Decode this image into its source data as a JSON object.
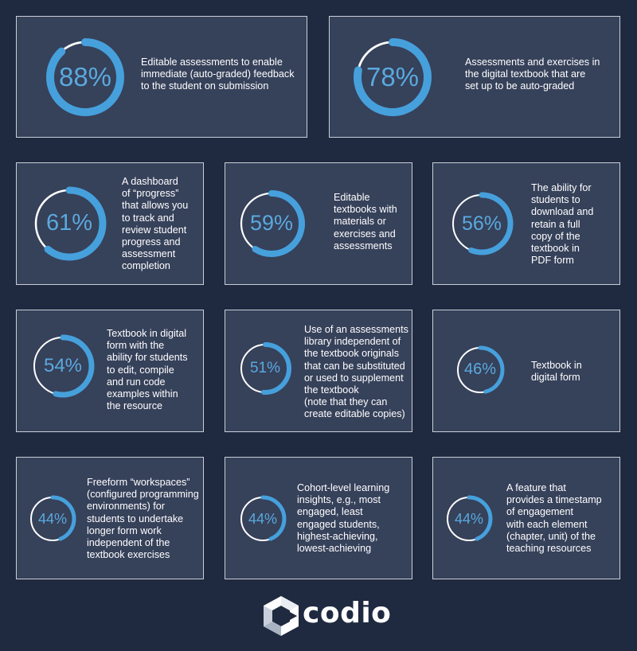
{
  "chart_data": {
    "type": "donut",
    "items": [
      {
        "value": 88,
        "label": "88%",
        "text": "Editable assessments to enable\nimmediate  (auto-graded) feedback\nto the student on submission"
      },
      {
        "value": 78,
        "label": "78%",
        "text": "Assessments and  exercises in\nthe digital textbook that are\nset up to be auto-graded"
      },
      {
        "value": 61,
        "label": "61%",
        "text": "A dashboard\nof “progress”\nthat allows you\nto  track and\nreview student\nprogress and\nassessment\ncompletion"
      },
      {
        "value": 59,
        "label": "59%",
        "text": "Editable\ntextbooks with\nmaterials or\nexercises and\nassessments"
      },
      {
        "value": 56,
        "label": "56%",
        "text": "The ability for\nstudents to\ndownload and\nretain  a full\ncopy of the\ntextbook in\nPDF form"
      },
      {
        "value": 54,
        "label": "54%",
        "text": "Textbook in digital\nform with the\nability for students\nto edit, compile\nand run code\nexamples within\nthe resource"
      },
      {
        "value": 51,
        "label": "51%",
        "text": "Use of an assessments\nlibrary independent of\nthe textbook originals\nthat can be substituted\nor used to supplement\nthe textbook\n(note that they can\ncreate editable copies)"
      },
      {
        "value": 46,
        "label": "46%",
        "text": "Textbook in\ndigital form"
      },
      {
        "value": 44,
        "label": "44%",
        "text": "Freeform “workspaces”\n(configured programming\nenvironments) for\nstudents to undertake\nlonger form work\nindependent of the\ntextbook exercises"
      },
      {
        "value": 44,
        "label": "44%",
        "text": "Cohort-level learning\ninsights, e.g., most\nengaged, least\nengaged students,\nhighest-achieving,\nlowest-achieving"
      },
      {
        "value": 44,
        "label": "44%",
        "text": "A feature that\nprovides a timestamp\nof engagement\nwith each element\n(chapter, unit) of the\nteaching resources"
      }
    ],
    "colors": {
      "fill": "#46a0dc",
      "track": "#ffffff",
      "percent_text": "#5aa9de",
      "card": "#36415a",
      "background": "#1f2a40"
    }
  },
  "logo": {
    "text": "codio",
    "icon": "codio-logo-icon"
  }
}
